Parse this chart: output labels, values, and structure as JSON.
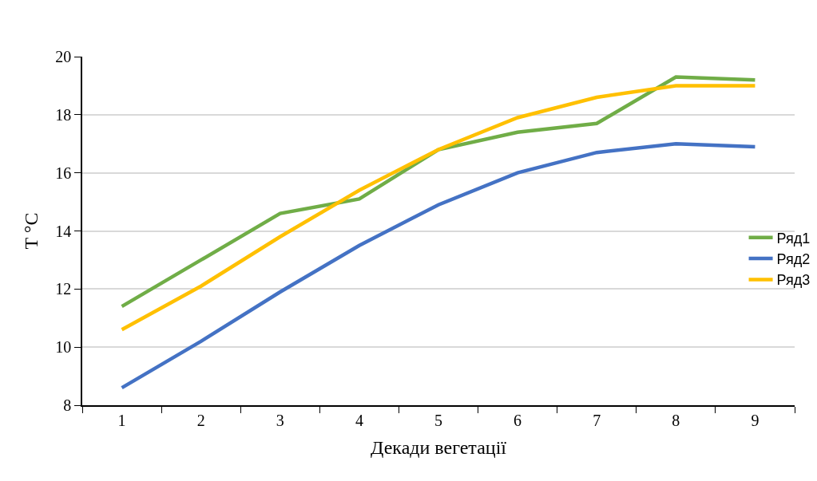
{
  "chart_data": {
    "type": "line",
    "xlabel": "Декади вегетації",
    "ylabel": "T °C",
    "categories": [
      "1",
      "2",
      "3",
      "4",
      "5",
      "6",
      "7",
      "8",
      "9"
    ],
    "series": [
      {
        "name": "Ряд1",
        "color": "#70ad47",
        "values": [
          11.4,
          13.0,
          14.6,
          15.1,
          16.8,
          17.4,
          17.7,
          19.3,
          19.2
        ]
      },
      {
        "name": "Ряд2",
        "color": "#4472c4",
        "values": [
          8.6,
          10.2,
          11.9,
          13.5,
          14.9,
          16.0,
          16.7,
          17.0,
          16.9
        ]
      },
      {
        "name": "Ряд3",
        "color": "#ffc000",
        "values": [
          10.6,
          12.1,
          13.8,
          15.4,
          16.8,
          17.9,
          18.6,
          19.0,
          19.0
        ]
      }
    ],
    "ylim": [
      8,
      20
    ],
    "yticks": [
      8,
      10,
      12,
      14,
      16,
      18,
      20
    ],
    "grid": "y",
    "legend": "right",
    "marker": "none",
    "line_style": "solid"
  }
}
